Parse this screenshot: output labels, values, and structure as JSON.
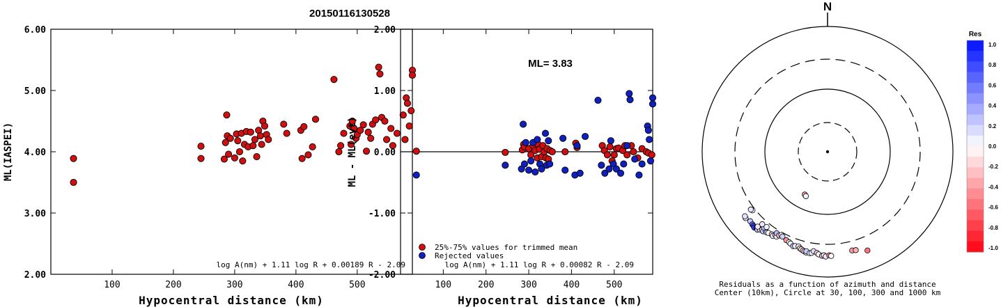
{
  "event_id": "20150116130528",
  "colors": {
    "kept": "#d01010",
    "rejected": "#1020c0",
    "axis": "#000000"
  },
  "chart_data": [
    {
      "id": "ml-vs-distance",
      "type": "scatter",
      "title": "",
      "xlabel": "Hypocentral distance (km)",
      "ylabel": "ML(IASPEI)",
      "xlim": [
        0,
        590
      ],
      "ylim": [
        2.0,
        6.0
      ],
      "xticks": [
        "100",
        "200",
        "300",
        "400",
        "500"
      ],
      "yticks": [
        "2.00",
        "3.00",
        "4.00",
        "5.00",
        "6.00"
      ],
      "formula": "log A(nm) + 1.11 log R + 0.00189 R - 2.09",
      "grid": false,
      "series": [
        {
          "points": [
            [
              37,
              3.89
            ],
            [
              37,
              3.5
            ],
            [
              245,
              4.09
            ],
            [
              245,
              3.89
            ],
            [
              283,
              3.88
            ],
            [
              285,
              4.15
            ],
            [
              287,
              4.6
            ],
            [
              288,
              4.26
            ],
            [
              290,
              3.96
            ],
            [
              293,
              4.22
            ],
            [
              300,
              3.9
            ],
            [
              303,
              4.29
            ],
            [
              305,
              4.18
            ],
            [
              308,
              4.0
            ],
            [
              311,
              4.3
            ],
            [
              313,
              3.85
            ],
            [
              316,
              4.12
            ],
            [
              319,
              4.33
            ],
            [
              322,
              4.08
            ],
            [
              326,
              4.32
            ],
            [
              330,
              4.1
            ],
            [
              333,
              4.2
            ],
            [
              336,
              3.92
            ],
            [
              339,
              4.35
            ],
            [
              342,
              4.26
            ],
            [
              344,
              4.12
            ],
            [
              346,
              4.5
            ],
            [
              349,
              4.42
            ],
            [
              352,
              4.28
            ],
            [
              355,
              4.2
            ],
            [
              380,
              4.45
            ],
            [
              385,
              4.3
            ],
            [
              408,
              4.35
            ],
            [
              410,
              3.89
            ],
            [
              413,
              4.41
            ],
            [
              420,
              3.95
            ],
            [
              427,
              4.08
            ],
            [
              432,
              4.53
            ],
            [
              462,
              5.18
            ],
            [
              470,
              4.0
            ],
            [
              473,
              4.1
            ],
            [
              478,
              4.3
            ],
            [
              488,
              4.42
            ],
            [
              490,
              4.12
            ],
            [
              492,
              4.5
            ],
            [
              495,
              4.38
            ],
            [
              498,
              4.22
            ],
            [
              500,
              4.28
            ],
            [
              505,
              4.35
            ],
            [
              510,
              4.44
            ],
            [
              515,
              4.01
            ],
            [
              518,
              4.32
            ],
            [
              522,
              4.22
            ],
            [
              525,
              4.45
            ],
            [
              530,
              4.52
            ],
            [
              535,
              5.38
            ],
            [
              537,
              5.27
            ],
            [
              540,
              4.56
            ],
            [
              545,
              4.5
            ],
            [
              548,
              4.2
            ],
            [
              555,
              4.38
            ],
            [
              558,
              4.1
            ],
            [
              565,
              4.3
            ],
            [
              575,
              4.6
            ],
            [
              578,
              4.2
            ],
            [
              580,
              4.88
            ],
            [
              582,
              4.79
            ],
            [
              585,
              4.42
            ],
            [
              588,
              4.67
            ],
            [
              590,
              5.33
            ],
            [
              590,
              5.25
            ]
          ]
        }
      ]
    },
    {
      "id": "residual-vs-distance",
      "type": "scatter",
      "title": "",
      "annotation": "ML= 3.83",
      "xlabel": "Hypocentral distance (km)",
      "ylabel": "ML - ML(evt)",
      "xlim": [
        0,
        590
      ],
      "ylim": [
        -2.0,
        2.0
      ],
      "xticks": [
        "100",
        "200",
        "300",
        "400",
        "500"
      ],
      "yticks": [
        "-2.00",
        "-1.00",
        "0.00",
        "1.00",
        "2.00"
      ],
      "zero_line": true,
      "formula": "log A(nm) + 1.11 log R + 0.00082 R - 2.09",
      "legend_position": "bottom-left",
      "grid": false,
      "series": [
        {
          "name": "25%-75% values for trimmed mean",
          "points": [
            [
              37,
              0.01
            ],
            [
              245,
              -0.01
            ],
            [
              285,
              0.03
            ],
            [
              288,
              0.12
            ],
            [
              290,
              0.08
            ],
            [
              300,
              0.05
            ],
            [
              305,
              -0.05
            ],
            [
              310,
              0.1
            ],
            [
              315,
              0.02
            ],
            [
              320,
              -0.1
            ],
            [
              322,
              0.12
            ],
            [
              325,
              0.04
            ],
            [
              330,
              -0.08
            ],
            [
              333,
              0.1
            ],
            [
              336,
              0.0
            ],
            [
              340,
              -0.1
            ],
            [
              343,
              0.05
            ],
            [
              346,
              -0.12
            ],
            [
              350,
              0.02
            ],
            [
              355,
              0.0
            ],
            [
              385,
              0.0
            ],
            [
              410,
              0.14
            ],
            [
              413,
              0.07
            ],
            [
              472,
              0.1
            ],
            [
              477,
              0.02
            ],
            [
              484,
              -0.05
            ],
            [
              490,
              0.08
            ],
            [
              495,
              -0.15
            ],
            [
              500,
              -0.05
            ],
            [
              505,
              0.05
            ],
            [
              510,
              0.06
            ],
            [
              520,
              0.02
            ],
            [
              525,
              0.1
            ],
            [
              530,
              -0.05
            ],
            [
              540,
              0.1
            ],
            [
              545,
              0.0
            ],
            [
              555,
              -0.1
            ],
            [
              565,
              0.05
            ],
            [
              575,
              0.0
            ],
            [
              580,
              -0.02
            ],
            [
              588,
              -0.05
            ]
          ]
        },
        {
          "name": "Rejected values",
          "points": [
            [
              37,
              -0.38
            ],
            [
              245,
              -0.22
            ],
            [
              283,
              -0.28
            ],
            [
              287,
              0.45
            ],
            [
              290,
              -0.2
            ],
            [
              293,
              0.15
            ],
            [
              300,
              -0.3
            ],
            [
              305,
              -0.15
            ],
            [
              310,
              0.15
            ],
            [
              315,
              -0.33
            ],
            [
              320,
              0.2
            ],
            [
              326,
              -0.2
            ],
            [
              330,
              -0.28
            ],
            [
              339,
              0.3
            ],
            [
              342,
              -0.22
            ],
            [
              346,
              0.18
            ],
            [
              349,
              -0.2
            ],
            [
              380,
              0.22
            ],
            [
              385,
              -0.3
            ],
            [
              408,
              -0.38
            ],
            [
              413,
              0.1
            ],
            [
              420,
              -0.35
            ],
            [
              432,
              0.25
            ],
            [
              462,
              0.84
            ],
            [
              470,
              -0.22
            ],
            [
              478,
              -0.35
            ],
            [
              488,
              -0.28
            ],
            [
              492,
              0.18
            ],
            [
              498,
              -0.2
            ],
            [
              505,
              -0.28
            ],
            [
              515,
              -0.35
            ],
            [
              522,
              -0.2
            ],
            [
              530,
              0.1
            ],
            [
              535,
              0.95
            ],
            [
              537,
              0.85
            ],
            [
              548,
              -0.12
            ],
            [
              558,
              -0.38
            ],
            [
              565,
              -0.2
            ],
            [
              578,
              0.42
            ],
            [
              580,
              0.35
            ],
            [
              582,
              0.2
            ],
            [
              585,
              -0.15
            ],
            [
              590,
              0.88
            ],
            [
              590,
              0.78
            ]
          ]
        }
      ]
    },
    {
      "id": "azimuth-distance-residuals",
      "type": "scatter",
      "subtype": "polar",
      "title": "",
      "north_label": "N",
      "caption_line1": "Residuals as a function of azimuth and distance",
      "caption_line2": "Center (10km), Circle at 30, 100, 300 and 1000 km",
      "rings_km": [
        30,
        100,
        300,
        1000
      ],
      "colorbar": {
        "title": "Res",
        "ticks": [
          "1.0",
          "0.8",
          "0.6",
          "0.4",
          "0.2",
          "0.0",
          "-0.2",
          "-0.4",
          "-0.6",
          "-0.8",
          "-1.0"
        ],
        "range": [
          -1.0,
          1.0
        ],
        "positive_color": "#0010ff",
        "negative_color": "#ff0010"
      },
      "points_azimuth_deg_distance_km_residual": [
        [
          208,
          60,
          -0.3
        ],
        [
          206,
          62,
          0.05
        ],
        [
          232,
          330,
          0.05
        ],
        [
          233,
          340,
          0.1
        ],
        [
          231,
          480,
          0.05
        ],
        [
          232,
          470,
          0.12
        ],
        [
          228,
          455,
          0.2
        ],
        [
          226,
          465,
          0.6
        ],
        [
          225,
          470,
          0.8
        ],
        [
          224,
          480,
          0.75
        ],
        [
          223,
          460,
          0.9
        ],
        [
          222,
          470,
          0.3
        ],
        [
          221,
          440,
          0.1
        ],
        [
          223,
          430,
          -0.1
        ],
        [
          220,
          420,
          0.0
        ],
        [
          219,
          430,
          0.2
        ],
        [
          218,
          400,
          0.15
        ],
        [
          217,
          410,
          0.25
        ],
        [
          216,
          400,
          0.0
        ],
        [
          220,
          380,
          0.3
        ],
        [
          222,
          360,
          0.1
        ],
        [
          219,
          350,
          0.05
        ],
        [
          214,
          390,
          -0.2
        ],
        [
          213,
          400,
          0.1
        ],
        [
          212,
          370,
          -0.1
        ],
        [
          211,
          380,
          0.05
        ],
        [
          212,
          340,
          0.3
        ],
        [
          210,
          350,
          -0.3
        ],
        [
          209,
          330,
          0.0
        ],
        [
          208,
          340,
          0.2
        ],
        [
          205,
          360,
          -0.4
        ],
        [
          203,
          370,
          0.0
        ],
        [
          202,
          380,
          0.05
        ],
        [
          200,
          400,
          0.2
        ],
        [
          199,
          390,
          0.1
        ],
        [
          197,
          380,
          0.0
        ],
        [
          196,
          400,
          -0.2
        ],
        [
          195,
          410,
          0.0
        ],
        [
          194,
          420,
          -0.3
        ],
        [
          193,
          430,
          0.1
        ],
        [
          192,
          440,
          0.05
        ],
        [
          192,
          420,
          0.2
        ],
        [
          190,
          440,
          0.1
        ],
        [
          189,
          430,
          0.0
        ],
        [
          188,
          400,
          0.15
        ],
        [
          186,
          420,
          -0.2
        ],
        [
          185,
          440,
          0.05
        ],
        [
          183,
          460,
          -0.3
        ],
        [
          182,
          450,
          0.0
        ],
        [
          181,
          470,
          0.1
        ],
        [
          179,
          450,
          -0.5
        ],
        [
          178,
          460,
          0.0
        ],
        [
          166,
          420,
          -0.4
        ],
        [
          164,
          430,
          -0.3
        ],
        [
          158,
          500,
          -0.55
        ]
      ]
    }
  ]
}
